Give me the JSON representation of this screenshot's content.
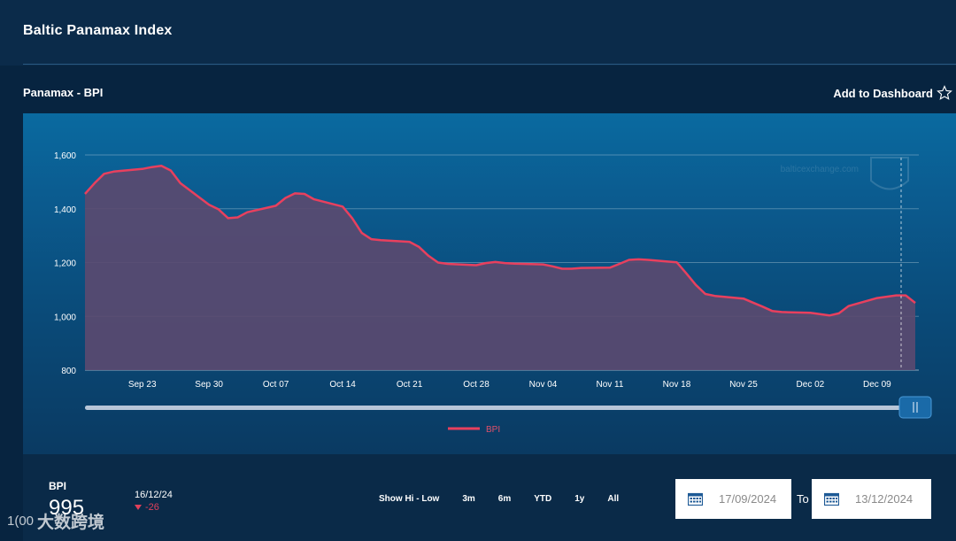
{
  "header": {
    "title": "Baltic Panamax Index"
  },
  "chart_header": {
    "title": "Panamax - BPI",
    "add_to_dashboard": "Add to Dashboard"
  },
  "summary": {
    "label": "BPI",
    "value": "995",
    "date": "16/12/24",
    "change": "-26"
  },
  "range_buttons": [
    "Show Hi - Low",
    "3m",
    "6m",
    "YTD",
    "1y",
    "All"
  ],
  "date_range": {
    "from": "17/09/2024",
    "to_label": "To",
    "to": "13/12/2024"
  },
  "watermark": {
    "logo_text": "1(00",
    "text": "大数跨境"
  },
  "site_watermark": "balticexchange.com",
  "colors": {
    "line": "#e8405e",
    "fill": "#5a4a70",
    "accent_red": "#e0405a"
  },
  "chart_data": {
    "type": "area",
    "title": "",
    "xlabel": "",
    "ylabel": "",
    "ylim": [
      800,
      1600
    ],
    "yticks": [
      800,
      1000,
      1200,
      1400,
      1600
    ],
    "ytick_labels": [
      "800",
      "1,000",
      "1,200",
      "1,400",
      "1,600"
    ],
    "x_tick_labels": [
      "Sep 23",
      "Sep 30",
      "Oct 07",
      "Oct 14",
      "Oct 21",
      "Oct 28",
      "Nov 04",
      "Nov 11",
      "Nov 18",
      "Nov 25",
      "Dec 02",
      "Dec 09"
    ],
    "grid": true,
    "legend": {
      "position": "bottom-center",
      "entries": [
        "BPI"
      ]
    },
    "series": [
      {
        "name": "BPI",
        "x": [
          "2024-09-17",
          "2024-09-18",
          "2024-09-19",
          "2024-09-20",
          "2024-09-23",
          "2024-09-24",
          "2024-09-25",
          "2024-09-26",
          "2024-09-27",
          "2024-09-30",
          "2024-10-01",
          "2024-10-02",
          "2024-10-03",
          "2024-10-04",
          "2024-10-07",
          "2024-10-08",
          "2024-10-09",
          "2024-10-10",
          "2024-10-11",
          "2024-10-14",
          "2024-10-15",
          "2024-10-16",
          "2024-10-17",
          "2024-10-18",
          "2024-10-21",
          "2024-10-22",
          "2024-10-23",
          "2024-10-24",
          "2024-10-25",
          "2024-10-28",
          "2024-10-29",
          "2024-10-30",
          "2024-10-31",
          "2024-11-01",
          "2024-11-04",
          "2024-11-05",
          "2024-11-06",
          "2024-11-07",
          "2024-11-08",
          "2024-11-11",
          "2024-11-12",
          "2024-11-13",
          "2024-11-14",
          "2024-11-15",
          "2024-11-18",
          "2024-11-19",
          "2024-11-20",
          "2024-11-21",
          "2024-11-22",
          "2024-11-25",
          "2024-11-26",
          "2024-11-27",
          "2024-11-28",
          "2024-11-29",
          "2024-12-02",
          "2024-12-03",
          "2024-12-04",
          "2024-12-05",
          "2024-12-06",
          "2024-12-09",
          "2024-12-10",
          "2024-12-11",
          "2024-12-12",
          "2024-12-13"
        ],
        "values": [
          1455,
          1495,
          1530,
          1538,
          1548,
          1555,
          1560,
          1542,
          1495,
          1415,
          1398,
          1365,
          1368,
          1387,
          1411,
          1440,
          1457,
          1455,
          1435,
          1408,
          1365,
          1310,
          1287,
          1283,
          1277,
          1258,
          1225,
          1200,
          1195,
          1190,
          1198,
          1202,
          1198,
          1196,
          1193,
          1186,
          1177,
          1177,
          1180,
          1181,
          1195,
          1210,
          1212,
          1210,
          1201,
          1160,
          1117,
          1083,
          1076,
          1066,
          1051,
          1036,
          1020,
          1016,
          1013,
          1008,
          1003,
          1011,
          1038,
          1068,
          1073,
          1078,
          1078,
          1050
        ]
      }
    ]
  }
}
